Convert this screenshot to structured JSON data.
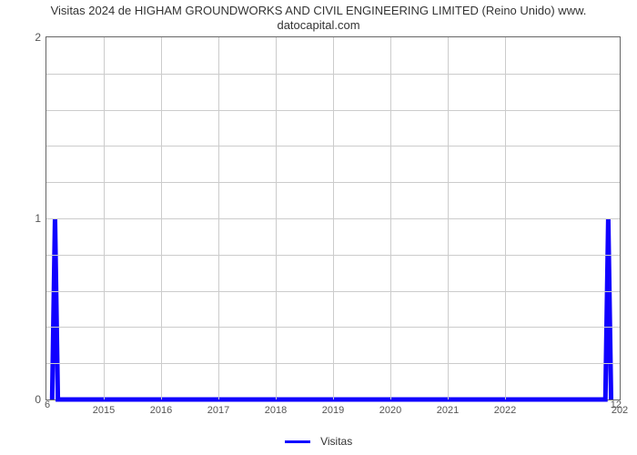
{
  "chart": {
    "type": "line",
    "title_line1": "Visitas 2024 de HIGHAM GROUNDWORKS AND CIVIL ENGINEERING LIMITED (Reino Unido) www.",
    "title_line2": "datocapital.com",
    "title_fontsize": 13,
    "title_color": "#333333",
    "background_color": "#ffffff",
    "border_color": "#666666",
    "grid_color": "#cccccc",
    "y_axis": {
      "min": 0,
      "max": 2,
      "ticks": [
        0,
        1,
        2
      ],
      "minor_step": 0.2,
      "label_fontsize": 12,
      "label_color": "#555555"
    },
    "x_axis": {
      "min": 2014,
      "max": 2024,
      "ticks": [
        2015,
        2016,
        2017,
        2018,
        2019,
        2020,
        2021,
        2022
      ],
      "tick_label_last": "202",
      "left_corner_label": "6",
      "right_corner_label": "12",
      "label_fontsize": 11,
      "label_color": "#555555"
    },
    "series": [
      {
        "name": "Visitas",
        "color": "#1000ff",
        "line_width": 2,
        "points": [
          {
            "x": 2014.1,
            "y": 0.0
          },
          {
            "x": 2014.15,
            "y": 1.0
          },
          {
            "x": 2014.2,
            "y": 0.0
          },
          {
            "x": 2023.75,
            "y": 0.0
          },
          {
            "x": 2023.8,
            "y": 1.0
          },
          {
            "x": 2023.85,
            "y": 0.0
          }
        ]
      }
    ],
    "legend": {
      "label": "Visitas",
      "swatch_color": "#1000ff",
      "fontsize": 12
    }
  }
}
